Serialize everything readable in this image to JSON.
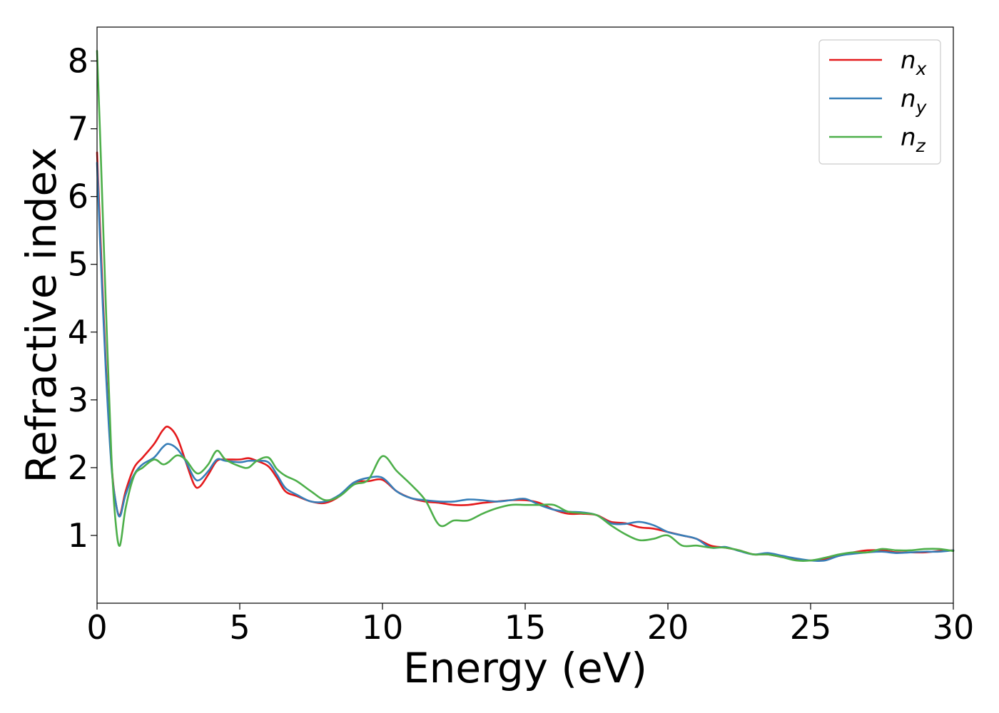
{
  "chart_data": {
    "type": "line",
    "xlabel": "Energy (eV)",
    "ylabel": "Refractive index",
    "xlim": [
      0,
      30
    ],
    "ylim": [
      0,
      8.5
    ],
    "xticks": [
      0,
      5,
      10,
      15,
      20,
      25,
      30
    ],
    "yticks": [
      1,
      2,
      3,
      4,
      5,
      6,
      7,
      8
    ],
    "grid": false,
    "legend_position": "top-right",
    "colors": {
      "nx": "#e41a1c",
      "ny": "#377eb8",
      "nz": "#4daf4a"
    },
    "series": [
      {
        "key": "nx",
        "name_main": "n",
        "name_sub": "x",
        "x": [
          0,
          0.1,
          0.3,
          0.5,
          0.65,
          0.8,
          1.0,
          1.3,
          1.6,
          2.0,
          2.3,
          2.5,
          2.8,
          3.1,
          3.4,
          3.6,
          3.9,
          4.2,
          4.5,
          5.0,
          5.3,
          5.6,
          6.0,
          6.3,
          6.6,
          7.0,
          7.5,
          8.0,
          8.5,
          9.0,
          9.5,
          10.0,
          10.5,
          11.0,
          11.5,
          12.0,
          12.5,
          13.0,
          13.5,
          14.0,
          14.5,
          15.0,
          15.5,
          16.0,
          16.5,
          17.0,
          17.5,
          18.0,
          18.5,
          19.0,
          19.5,
          20.0,
          20.5,
          21.0,
          21.5,
          22.0,
          22.5,
          23.0,
          23.5,
          24.0,
          24.5,
          25.0,
          25.5,
          26.0,
          26.5,
          27.0,
          27.5,
          28.0,
          28.5,
          29.0,
          29.5,
          30.0
        ],
        "values": [
          6.65,
          5.6,
          3.6,
          2.1,
          1.5,
          1.3,
          1.65,
          2.0,
          2.15,
          2.35,
          2.55,
          2.6,
          2.45,
          2.1,
          1.75,
          1.72,
          1.9,
          2.1,
          2.12,
          2.12,
          2.14,
          2.1,
          2.02,
          1.85,
          1.65,
          1.58,
          1.5,
          1.48,
          1.58,
          1.78,
          1.8,
          1.82,
          1.65,
          1.55,
          1.5,
          1.48,
          1.45,
          1.45,
          1.48,
          1.5,
          1.52,
          1.52,
          1.48,
          1.38,
          1.32,
          1.32,
          1.3,
          1.2,
          1.18,
          1.12,
          1.1,
          1.05,
          1.0,
          0.95,
          0.85,
          0.82,
          0.78,
          0.72,
          0.72,
          0.68,
          0.65,
          0.63,
          0.65,
          0.7,
          0.75,
          0.78,
          0.78,
          0.75,
          0.75,
          0.75,
          0.77,
          0.78
        ]
      },
      {
        "key": "ny",
        "name_main": "n",
        "name_sub": "y",
        "x": [
          0,
          0.1,
          0.3,
          0.5,
          0.65,
          0.8,
          1.0,
          1.3,
          1.6,
          2.0,
          2.3,
          2.5,
          2.8,
          3.1,
          3.4,
          3.6,
          3.9,
          4.2,
          4.5,
          5.0,
          5.3,
          5.6,
          6.0,
          6.3,
          6.6,
          7.0,
          7.5,
          8.0,
          8.5,
          9.0,
          9.5,
          10.0,
          10.5,
          11.0,
          11.5,
          12.0,
          12.5,
          13.0,
          13.5,
          14.0,
          14.5,
          15.0,
          15.5,
          16.0,
          16.5,
          17.0,
          17.5,
          18.0,
          18.5,
          19.0,
          19.5,
          20.0,
          20.5,
          21.0,
          21.5,
          22.0,
          22.5,
          23.0,
          23.5,
          24.0,
          24.5,
          25.0,
          25.5,
          26.0,
          26.5,
          27.0,
          27.5,
          28.0,
          28.5,
          29.0,
          29.5,
          30.0
        ],
        "values": [
          6.5,
          5.4,
          3.5,
          2.05,
          1.5,
          1.28,
          1.6,
          1.9,
          2.05,
          2.15,
          2.3,
          2.35,
          2.28,
          2.1,
          1.85,
          1.82,
          1.95,
          2.12,
          2.1,
          2.08,
          2.1,
          2.1,
          2.08,
          1.9,
          1.7,
          1.6,
          1.5,
          1.5,
          1.6,
          1.78,
          1.85,
          1.85,
          1.65,
          1.55,
          1.52,
          1.5,
          1.5,
          1.53,
          1.52,
          1.5,
          1.52,
          1.54,
          1.45,
          1.38,
          1.35,
          1.34,
          1.3,
          1.18,
          1.17,
          1.2,
          1.15,
          1.05,
          1.0,
          0.95,
          0.82,
          0.83,
          0.77,
          0.72,
          0.74,
          0.7,
          0.66,
          0.63,
          0.63,
          0.7,
          0.73,
          0.75,
          0.76,
          0.74,
          0.75,
          0.76,
          0.76,
          0.78
        ]
      },
      {
        "key": "nz",
        "name_main": "n",
        "name_sub": "z",
        "x": [
          0,
          0.1,
          0.3,
          0.5,
          0.65,
          0.8,
          1.0,
          1.3,
          1.6,
          2.0,
          2.3,
          2.5,
          2.8,
          3.1,
          3.4,
          3.6,
          3.9,
          4.2,
          4.5,
          5.0,
          5.3,
          5.6,
          6.0,
          6.3,
          6.6,
          7.0,
          7.5,
          8.0,
          8.5,
          9.0,
          9.5,
          10.0,
          10.5,
          11.0,
          11.5,
          12.0,
          12.5,
          13.0,
          13.5,
          14.0,
          14.5,
          15.0,
          15.5,
          16.0,
          16.5,
          17.0,
          17.5,
          18.0,
          18.5,
          19.0,
          19.5,
          20.0,
          20.5,
          21.0,
          21.5,
          22.0,
          22.5,
          23.0,
          23.5,
          24.0,
          24.5,
          25.0,
          25.5,
          26.0,
          26.5,
          27.0,
          27.5,
          28.0,
          28.5,
          29.0,
          29.5,
          30.0
        ],
        "values": [
          8.15,
          7.0,
          4.5,
          2.2,
          1.2,
          0.85,
          1.4,
          1.88,
          2.0,
          2.12,
          2.05,
          2.08,
          2.18,
          2.12,
          1.95,
          1.92,
          2.05,
          2.25,
          2.12,
          2.02,
          2.0,
          2.1,
          2.15,
          1.98,
          1.88,
          1.8,
          1.65,
          1.52,
          1.58,
          1.75,
          1.82,
          2.17,
          1.95,
          1.75,
          1.52,
          1.15,
          1.22,
          1.22,
          1.32,
          1.4,
          1.45,
          1.45,
          1.45,
          1.45,
          1.35,
          1.33,
          1.3,
          1.15,
          1.02,
          0.93,
          0.95,
          1.0,
          0.85,
          0.85,
          0.82,
          0.82,
          0.78,
          0.72,
          0.72,
          0.68,
          0.63,
          0.63,
          0.67,
          0.72,
          0.75,
          0.75,
          0.8,
          0.78,
          0.78,
          0.8,
          0.8,
          0.77
        ]
      }
    ]
  }
}
